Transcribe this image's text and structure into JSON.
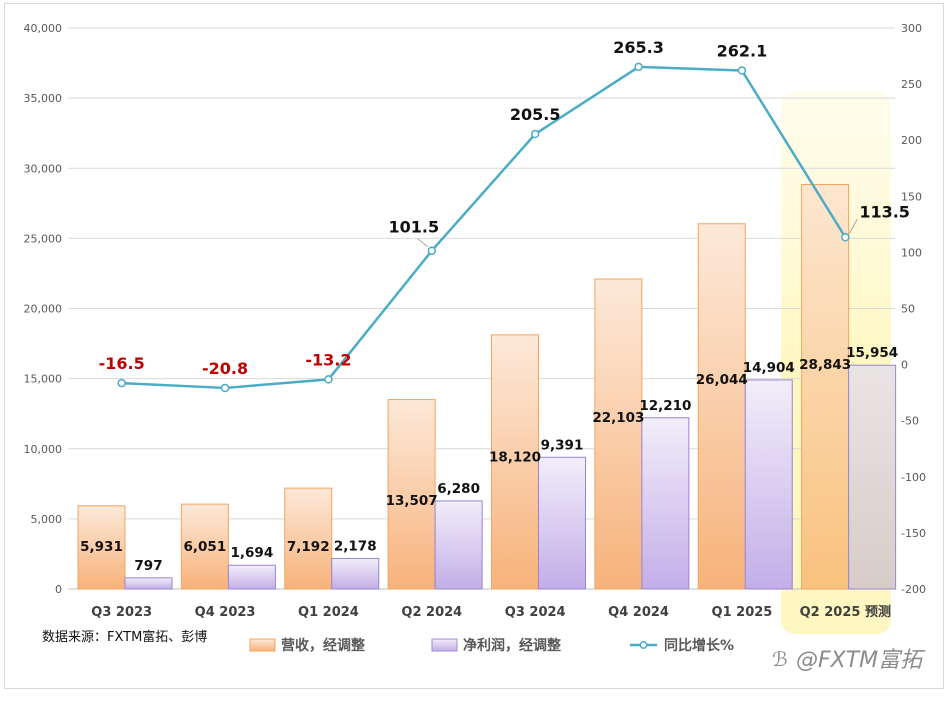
{
  "chart_data": {
    "type": "bar",
    "categories": [
      "Q3 2023",
      "Q4 2023",
      "Q1 2024",
      "Q2 2024",
      "Q3 2024",
      "Q4 2024",
      "Q1 2025",
      "Q2 2025"
    ],
    "forecast_suffix": "预测",
    "series": [
      {
        "name": "营收，经调整",
        "kind": "bar",
        "axis": "left",
        "values": [
          5931,
          6051,
          7192,
          13507,
          18120,
          22103,
          26044,
          28843
        ],
        "labels": [
          "5,931",
          "6,051",
          "7,192",
          "13,507",
          "18,120",
          "22,103",
          "26,044",
          "28,843"
        ]
      },
      {
        "name": "净利润，经调整",
        "kind": "bar",
        "axis": "left",
        "values": [
          797,
          1694,
          2178,
          6280,
          9391,
          12210,
          14904,
          15954
        ],
        "labels": [
          "797",
          "1,694",
          "2,178",
          "6,280",
          "9,391",
          "12,210",
          "14,904",
          "15,954"
        ]
      },
      {
        "name": "同比增长%",
        "kind": "line",
        "axis": "right",
        "values": [
          -16.5,
          -20.8,
          -13.2,
          101.5,
          205.5,
          265.3,
          262.1,
          113.5
        ],
        "labels": [
          "-16.5",
          "-20.8",
          "-13.2",
          "101.5",
          "205.5",
          "265.3",
          "262.1",
          "113.5"
        ]
      }
    ],
    "y_left": {
      "range": [
        0,
        40000
      ],
      "ticks": [
        "0",
        "5,000",
        "10,000",
        "15,000",
        "20,000",
        "25,000",
        "30,000",
        "35,000",
        "40,000"
      ]
    },
    "y_right": {
      "range": [
        -200,
        300
      ],
      "ticks": [
        "-200",
        "-150",
        "-100",
        "-50",
        "0",
        "50",
        "100",
        "150",
        "200",
        "250",
        "300"
      ]
    },
    "grid": true,
    "legend_position": "bottom",
    "colors": {
      "revenue": "#f7b27a",
      "profit": "#c9b5ea",
      "line": "#4bacc6",
      "negative_label": "#c00000",
      "forecast_highlight": "#fff9c4"
    }
  },
  "source_note": "数据来源：FXTM富拓、彭博",
  "watermark": "@FXTM富拓"
}
